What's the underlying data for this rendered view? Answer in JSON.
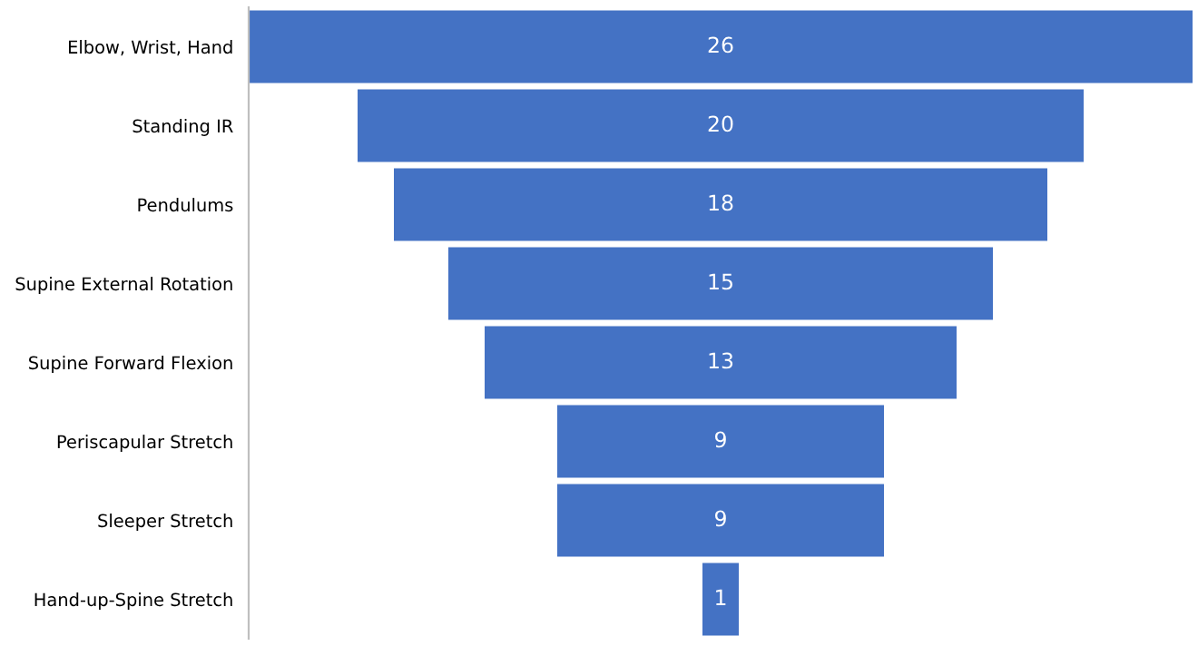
{
  "chart_data": {
    "type": "other",
    "categories": [
      "Elbow, Wrist, Hand",
      "Standing IR",
      "Pendulums",
      "Supine External Rotation",
      "Supine Forward Flexion",
      "Periscapular Stretch",
      "Sleeper Stretch",
      "Hand-up-Spine Stretch"
    ],
    "values": [
      26,
      20,
      18,
      15,
      13,
      9,
      9,
      1
    ],
    "color": "#4472c4",
    "data_labels": true
  }
}
